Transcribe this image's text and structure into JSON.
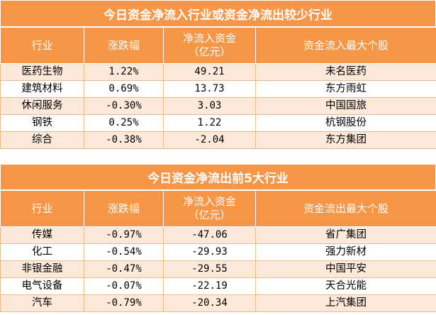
{
  "inflow": {
    "title": "今日资金净流入行业或资金净流出较少行业",
    "headers": [
      "行业",
      "涨跌幅",
      "净流入资金\n（亿元）",
      "资金流入最大个股"
    ],
    "rows": [
      [
        "医药生物",
        "1.22%",
        "49.21",
        "未名医药"
      ],
      [
        "建筑材料",
        "0.69%",
        "13.73",
        "东方雨虹"
      ],
      [
        "休闲服务",
        "-0.30%",
        "3.03",
        "中国国旅"
      ],
      [
        "钢铁",
        "0.25%",
        "1.22",
        "杭钢股份"
      ],
      [
        "综合",
        "-0.38%",
        "-2.04",
        "东方集团"
      ]
    ]
  },
  "outflow": {
    "title": "今日资金净流出前5大行业",
    "headers": [
      "行业",
      "涨跌幅",
      "净流入资金\n（亿元）",
      "资金流出最大个股"
    ],
    "rows": [
      [
        "传媒",
        "-0.97%",
        "-47.06",
        "省广集团"
      ],
      [
        "化工",
        "-0.54%",
        "-29.93",
        "强力新材"
      ],
      [
        "非银金融",
        "-0.47%",
        "-29.55",
        "中国平安"
      ],
      [
        "电气设备",
        "-0.07%",
        "-22.19",
        "天合光能"
      ],
      [
        "汽车",
        "-0.79%",
        "-20.34",
        "上汽集团"
      ]
    ]
  }
}
